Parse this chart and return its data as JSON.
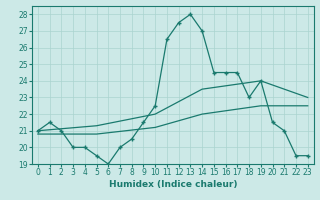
{
  "xlabel": "Humidex (Indice chaleur)",
  "ylabel": "",
  "xlim": [
    -0.5,
    23.5
  ],
  "ylim": [
    19,
    28.5
  ],
  "yticks": [
    19,
    20,
    21,
    22,
    23,
    24,
    25,
    26,
    27,
    28
  ],
  "xticks": [
    0,
    1,
    2,
    3,
    4,
    5,
    6,
    7,
    8,
    9,
    10,
    11,
    12,
    13,
    14,
    15,
    16,
    17,
    18,
    19,
    20,
    21,
    22,
    23
  ],
  "bg_color": "#cce9e7",
  "line_color": "#1a7a6e",
  "grid_color": "#aad4d0",
  "line1_x": [
    0,
    1,
    2,
    3,
    4,
    5,
    6,
    7,
    8,
    9,
    10,
    11,
    12,
    13,
    14,
    15,
    16,
    17,
    18,
    19,
    20,
    21,
    22,
    23
  ],
  "line1_y": [
    21.0,
    21.5,
    21.0,
    20.0,
    20.0,
    19.5,
    19.0,
    20.0,
    20.5,
    21.5,
    22.5,
    26.5,
    27.5,
    28.0,
    27.0,
    24.5,
    24.5,
    24.5,
    23.0,
    24.0,
    21.5,
    21.0,
    19.5,
    19.5
  ],
  "line2_x": [
    0,
    5,
    10,
    14,
    19,
    23
  ],
  "line2_y": [
    21.0,
    21.3,
    22.0,
    23.5,
    24.0,
    23.0
  ],
  "line3_x": [
    0,
    5,
    10,
    14,
    19,
    23
  ],
  "line3_y": [
    20.8,
    20.8,
    21.2,
    22.0,
    22.5,
    22.5
  ],
  "figsize": [
    3.2,
    2.0
  ],
  "dpi": 100
}
